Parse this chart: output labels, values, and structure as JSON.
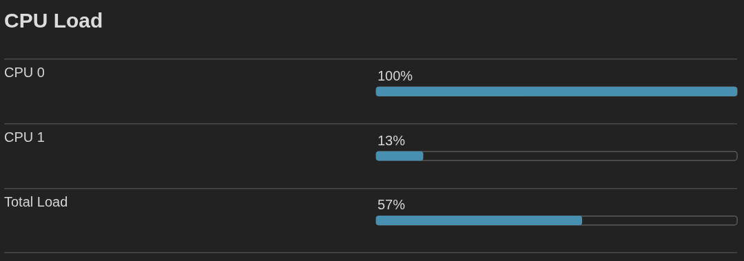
{
  "chart_data": {
    "type": "bar",
    "orientation": "horizontal",
    "title": "CPU Load",
    "categories": [
      "CPU 0",
      "CPU 1",
      "Total Load"
    ],
    "values": [
      100,
      13,
      57
    ],
    "value_labels": [
      "100%",
      "13%",
      "57%"
    ],
    "color": "#4790b2",
    "xlim": [
      0,
      100
    ],
    "grid": "y",
    "tick_labels": "y",
    "legend": false
  }
}
